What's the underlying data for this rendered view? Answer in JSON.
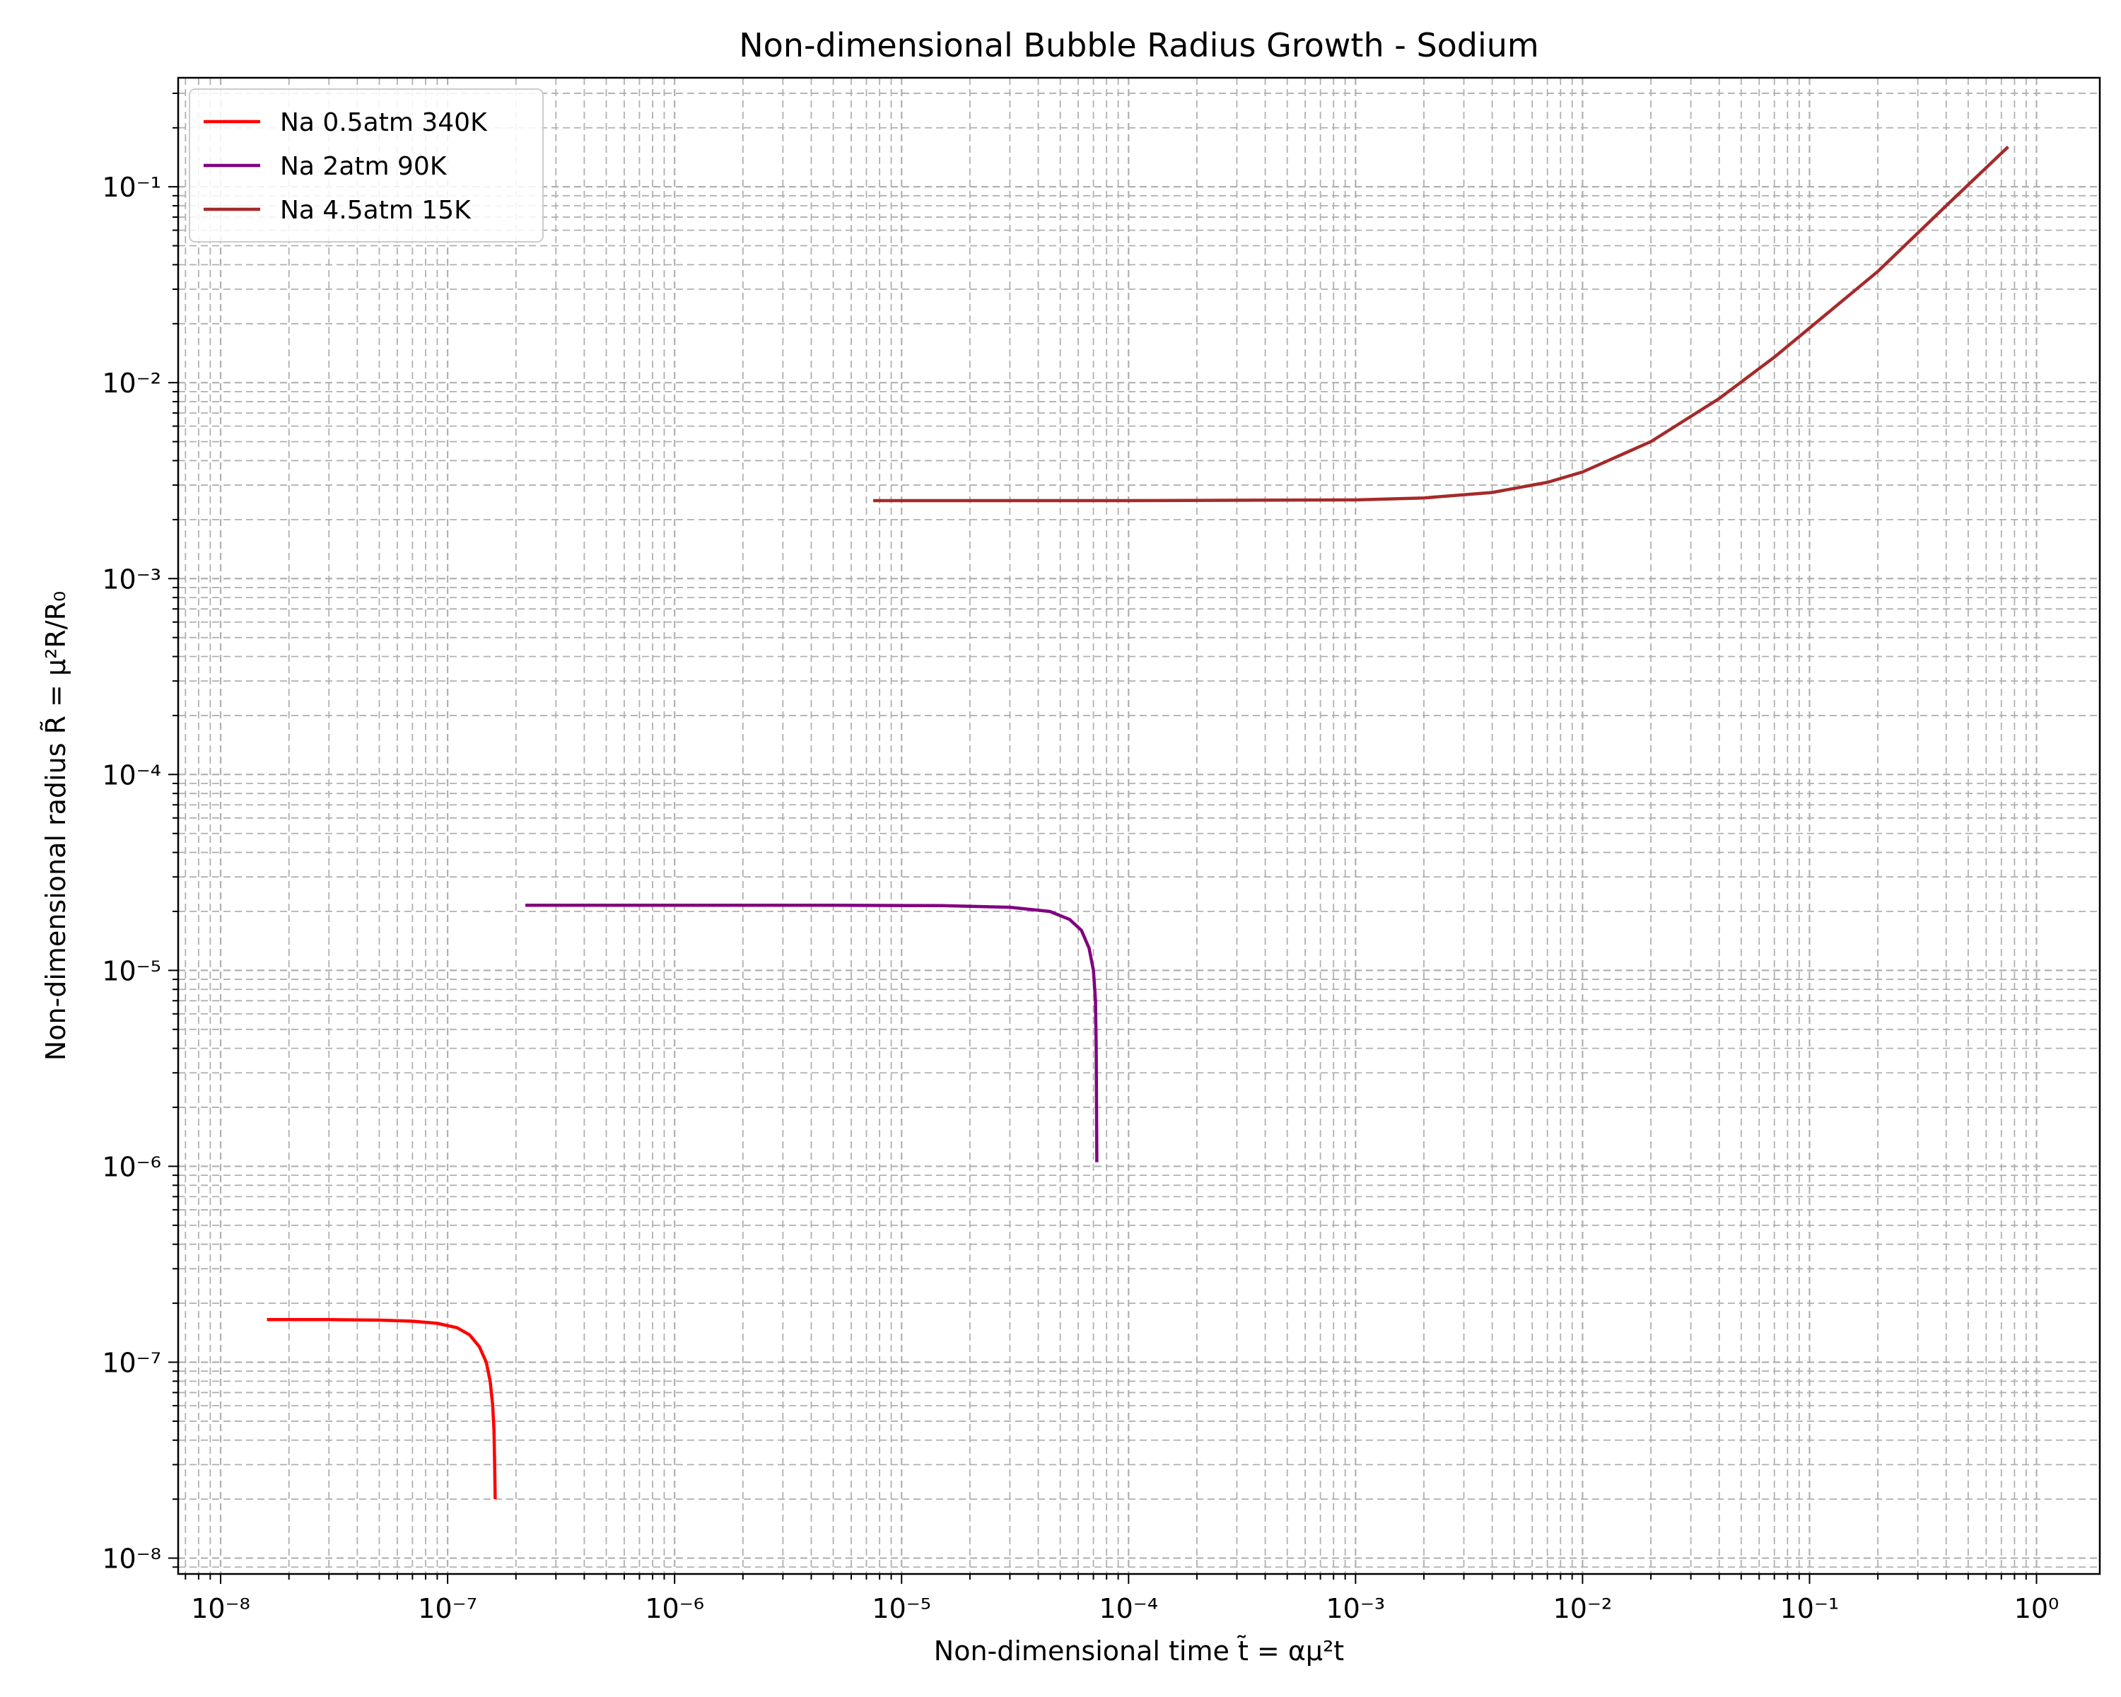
{
  "chart_data": {
    "type": "line",
    "title": "Non-dimensional Bubble Radius Growth - Sodium",
    "xlabel": "Non-dimensional time t̃ = αμ²t",
    "ylabel": "Non-dimensional radius R̃ = μ²R/R₀",
    "xscale": "log",
    "yscale": "log",
    "xlim": [
      6.5e-09,
      1.9
    ],
    "ylim": [
      8.3e-09,
      0.36
    ],
    "x_ticks": [
      {
        "value": 1e-08,
        "label": "10⁻⁸"
      },
      {
        "value": 1e-07,
        "label": "10⁻⁷"
      },
      {
        "value": 1e-06,
        "label": "10⁻⁶"
      },
      {
        "value": 1e-05,
        "label": "10⁻⁵"
      },
      {
        "value": 0.0001,
        "label": "10⁻⁴"
      },
      {
        "value": 0.001,
        "label": "10⁻³"
      },
      {
        "value": 0.01,
        "label": "10⁻²"
      },
      {
        "value": 0.1,
        "label": "10⁻¹"
      },
      {
        "value": 1,
        "label": "10⁰"
      }
    ],
    "y_ticks": [
      {
        "value": 1e-08,
        "label": "10⁻⁸"
      },
      {
        "value": 1e-07,
        "label": "10⁻⁷"
      },
      {
        "value": 1e-06,
        "label": "10⁻⁶"
      },
      {
        "value": 1e-05,
        "label": "10⁻⁵"
      },
      {
        "value": 0.0001,
        "label": "10⁻⁴"
      },
      {
        "value": 0.001,
        "label": "10⁻³"
      },
      {
        "value": 0.01,
        "label": "10⁻²"
      },
      {
        "value": 0.1,
        "label": "10⁻¹"
      }
    ],
    "grid": true,
    "grid_minor": true,
    "legend_position": "top-left",
    "series": [
      {
        "name": "Na 0.5atm 340K",
        "color": "#ff0000",
        "points": [
          [
            1.6e-08,
            1.65e-07
          ],
          [
            3e-08,
            1.65e-07
          ],
          [
            5e-08,
            1.64e-07
          ],
          [
            7e-08,
            1.62e-07
          ],
          [
            9e-08,
            1.58e-07
          ],
          [
            1.1e-07,
            1.5e-07
          ],
          [
            1.25e-07,
            1.38e-07
          ],
          [
            1.38e-07,
            1.2e-07
          ],
          [
            1.48e-07,
            1e-07
          ],
          [
            1.54e-07,
            8e-08
          ],
          [
            1.58e-07,
            6e-08
          ],
          [
            1.6e-07,
            4.5e-08
          ],
          [
            1.61e-07,
            3.2e-08
          ],
          [
            1.62e-07,
            2e-08
          ]
        ]
      },
      {
        "name": "Na 2atm 90K",
        "color": "#800080",
        "points": [
          [
            2.2e-07,
            2.15e-05
          ],
          [
            1e-06,
            2.15e-05
          ],
          [
            5e-06,
            2.15e-05
          ],
          [
            1.5e-05,
            2.14e-05
          ],
          [
            3e-05,
            2.1e-05
          ],
          [
            4.5e-05,
            2e-05
          ],
          [
            5.5e-05,
            1.82e-05
          ],
          [
            6.2e-05,
            1.6e-05
          ],
          [
            6.7e-05,
            1.3e-05
          ],
          [
            7e-05,
            1e-05
          ],
          [
            7.15e-05,
            7e-06
          ],
          [
            7.2e-05,
            4e-06
          ],
          [
            7.25e-05,
            1.05e-06
          ]
        ]
      },
      {
        "name": "Na 4.5atm 15K",
        "color": "#a52a2a",
        "points": [
          [
            7.5e-06,
            0.0025
          ],
          [
            0.0001,
            0.0025
          ],
          [
            0.001,
            0.00252
          ],
          [
            0.002,
            0.00258
          ],
          [
            0.004,
            0.00275
          ],
          [
            0.007,
            0.0031
          ],
          [
            0.01,
            0.0035
          ],
          [
            0.02,
            0.005
          ],
          [
            0.04,
            0.0083
          ],
          [
            0.07,
            0.0135
          ],
          [
            0.1,
            0.019
          ],
          [
            0.2,
            0.037
          ],
          [
            0.4,
            0.08
          ],
          [
            0.75,
            0.16
          ]
        ]
      }
    ]
  },
  "colors": {
    "grid": "#b0b0b0",
    "axes": "#000000",
    "legend_border": "#cccccc"
  }
}
